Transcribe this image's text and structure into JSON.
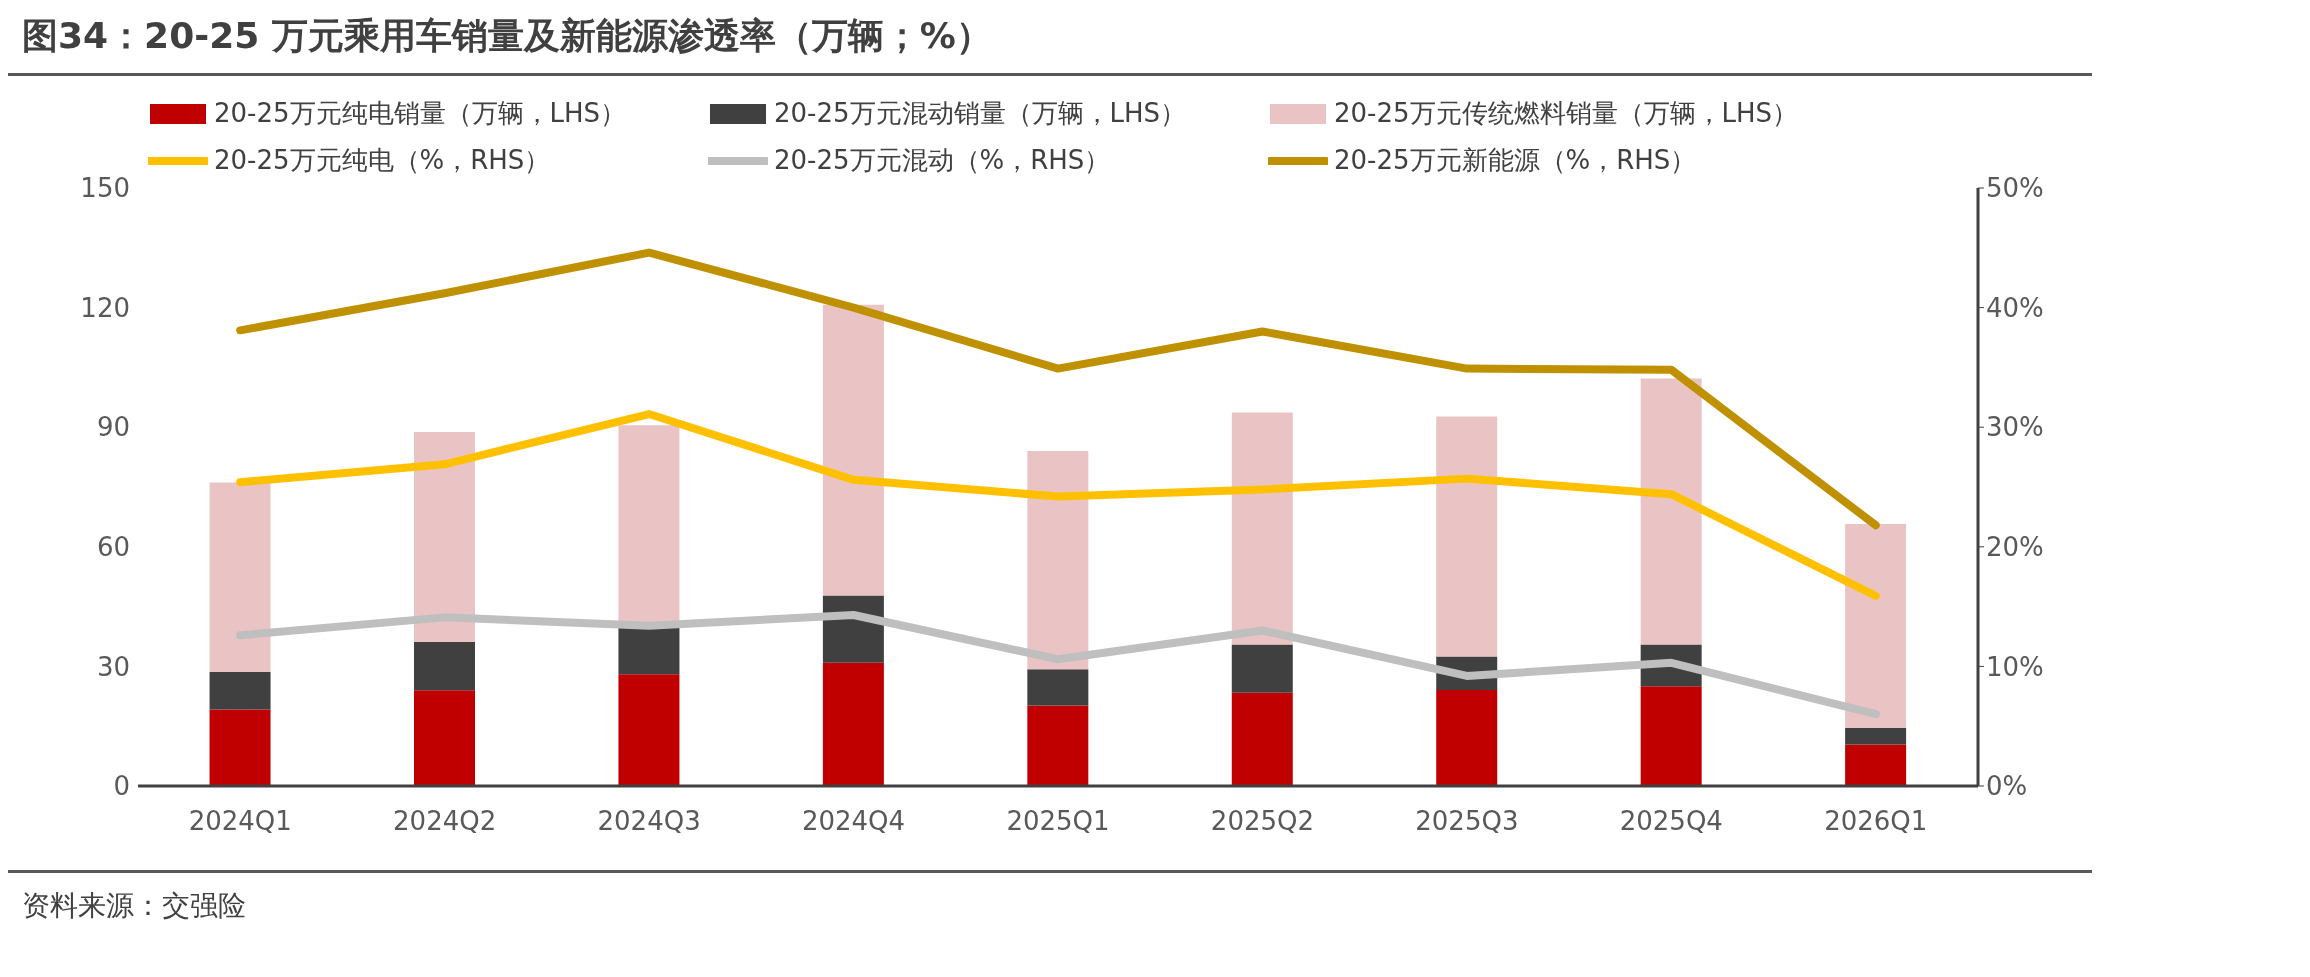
{
  "chart_data": {
    "type": "bar",
    "title": "图34：20-25 万元乘用车销量及新能源渗透率（万辆；%）",
    "stacked": true,
    "categories": [
      "2024Q1",
      "2024Q2",
      "2024Q3",
      "2024Q4",
      "2025Q1",
      "2025Q2",
      "2025Q3",
      "2025Q4",
      "2026Q1"
    ],
    "series": [
      {
        "name": "20-25万元纯电销量（万辆，LHS）",
        "color": "#c00000",
        "values": [
          19.2,
          24.0,
          28.0,
          30.9,
          20.2,
          23.4,
          24.1,
          25.0,
          10.4
        ]
      },
      {
        "name": "20-25万元混动销量（万辆，LHS）",
        "color": "#404040",
        "values": [
          9.4,
          12.1,
          11.7,
          16.9,
          9.1,
          12.1,
          8.4,
          10.5,
          4.2
        ]
      },
      {
        "name": "20-25万元传统燃料销量（万辆，LHS）",
        "color": "#eac4c4",
        "values": [
          47.5,
          52.7,
          50.8,
          72.9,
          54.7,
          58.2,
          60.2,
          66.7,
          51.1
        ]
      },
      {
        "name": "20-25万元纯电（%，RHS）",
        "type": "line",
        "axis": "y2",
        "color": "#ffc000",
        "values": [
          25.4,
          26.9,
          31.1,
          25.6,
          24.2,
          24.8,
          25.7,
          24.4,
          15.9
        ]
      },
      {
        "name": "20-25万元混动（%，RHS）",
        "type": "line",
        "axis": "y2",
        "color": "#bfbfbf",
        "values": [
          12.6,
          14.1,
          13.4,
          14.3,
          10.6,
          13.0,
          9.2,
          10.3,
          6.0
        ]
      },
      {
        "name": "20-25万元新能源（%，RHS）",
        "type": "line",
        "axis": "y2",
        "color": "#bf9000",
        "values": [
          38.1,
          41.2,
          44.6,
          40.0,
          34.9,
          38.0,
          34.9,
          34.8,
          21.8
        ]
      }
    ],
    "ylim": [
      0,
      150
    ],
    "yticks": [
      0,
      30,
      60,
      90,
      120,
      150
    ],
    "y2lim": [
      0,
      50
    ],
    "y2ticks": [
      {
        "value": 0,
        "label": "0%"
      },
      {
        "value": 10,
        "label": "10%"
      },
      {
        "value": 20,
        "label": "20%"
      },
      {
        "value": 30,
        "label": "30%"
      },
      {
        "value": 40,
        "label": "40%"
      },
      {
        "value": 50,
        "label": "50%"
      }
    ],
    "grid": false,
    "legend": "top",
    "marker": "none",
    "line_style": "solid",
    "annotations": [
      "资料来源：交强险"
    ]
  }
}
